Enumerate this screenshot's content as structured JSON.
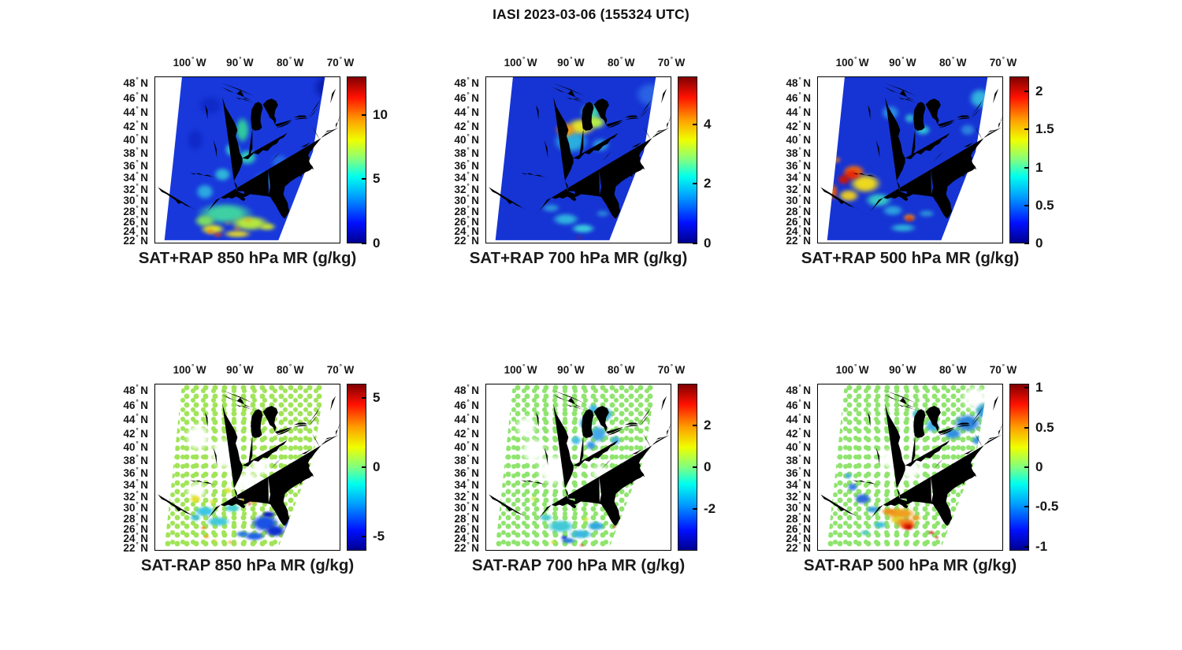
{
  "figure_title": "IASI 2023-03-06 (155324 UTC)",
  "deg_symbol": "°",
  "axes": {
    "lon_hemisphere": "W",
    "lat_hemisphere": "N",
    "lon_tick_values": [
      100,
      90,
      80,
      70
    ],
    "lat_tick_values": [
      48,
      46,
      44,
      42,
      40,
      38,
      36,
      34,
      32,
      30,
      28,
      26,
      24,
      22
    ],
    "lon_range_west_to_east": [
      107,
      70
    ],
    "lat_range_south_to_north": [
      22,
      49
    ],
    "grid": false
  },
  "colormap_jet": [
    "#000090",
    "#0010ff",
    "#00a0ff",
    "#00ffee",
    "#80ff80",
    "#efff00",
    "#ffa000",
    "#ff1000",
    "#800000"
  ],
  "chart_data": [
    {
      "type": "heatmap",
      "title": "SAT+RAP 850 hPa MR (g/kg)",
      "pressure_level_hpa": 850,
      "quantity": "mixing ratio (g/kg)",
      "mode": "SAT+RAP",
      "colorbar": {
        "range": [
          0,
          13
        ],
        "tick_values": [
          0,
          5,
          10
        ],
        "tick_labels": [
          "0",
          "5",
          "10"
        ]
      },
      "field": {
        "style": "smooth",
        "base_color": "#1838dc",
        "blobs": [
          [
            72.5,
            47.5,
            4,
            2.5,
            "#0a1fb0"
          ],
          [
            96,
            45,
            3.5,
            2,
            "#0f2ac8"
          ],
          [
            99,
            40,
            2.5,
            2.5,
            "#0f2ac8"
          ],
          [
            89.5,
            41.5,
            2.2,
            2.8,
            "#2ec89e"
          ],
          [
            91.5,
            38.5,
            2.2,
            1.6,
            "#35c8cc"
          ],
          [
            88.5,
            37.3,
            2.8,
            1.8,
            "#30c8b8"
          ],
          [
            85,
            33.5,
            3,
            2,
            "#2f86e0"
          ],
          [
            82,
            36.5,
            2.5,
            2,
            "#2565e6"
          ],
          [
            97,
            31.5,
            2.6,
            2,
            "#2ca8e0"
          ],
          [
            93.5,
            34.5,
            2.4,
            1.6,
            "#2fb6d8"
          ],
          [
            93,
            27.5,
            8,
            3,
            "#3ed0a2"
          ],
          [
            97,
            26,
            3,
            1.8,
            "#7ade64"
          ],
          [
            88,
            25.5,
            5.5,
            2.2,
            "#b4e83c"
          ],
          [
            95.5,
            24.3,
            3.5,
            1.6,
            "#dce22c"
          ],
          [
            84.5,
            24.8,
            2.4,
            1.2,
            "#c8e434"
          ],
          [
            90.5,
            23.3,
            4,
            1.2,
            "#e0d42c"
          ],
          [
            96,
            23.8,
            1.2,
            0.7,
            "#f07818"
          ],
          [
            94.4,
            23.1,
            1.4,
            0.6,
            "#e83a0e"
          ],
          [
            90.6,
            24.4,
            0.9,
            0.5,
            "#f09020"
          ],
          [
            88.4,
            26.1,
            0.8,
            0.5,
            "#f0a020"
          ],
          [
            92.4,
            25.6,
            0.7,
            0.4,
            "#ef8c1e"
          ]
        ]
      }
    },
    {
      "type": "heatmap",
      "title": "SAT+RAP 700 hPa MR (g/kg)",
      "pressure_level_hpa": 700,
      "quantity": "mixing ratio (g/kg)",
      "mode": "SAT+RAP",
      "colorbar": {
        "range": [
          0,
          5.6
        ],
        "tick_values": [
          0,
          2,
          4
        ],
        "tick_labels": [
          "0",
          "2",
          "4"
        ]
      },
      "field": {
        "style": "smooth",
        "base_color": "#1634d4",
        "blobs": [
          [
            74,
            46.5,
            4.5,
            2.5,
            "#2a62e4"
          ],
          [
            90,
            39.8,
            5,
            2.6,
            "#2aaede"
          ],
          [
            86,
            44,
            3,
            1.8,
            "#3ecfb2"
          ],
          [
            84,
            39.2,
            2.6,
            1.5,
            "#2d97dd"
          ],
          [
            88,
            42,
            4,
            1.8,
            "#e4e22a"
          ],
          [
            85.2,
            42.6,
            3.2,
            1.4,
            "#b5ee48"
          ],
          [
            91,
            41.5,
            2.8,
            1.5,
            "#f59d12"
          ],
          [
            91.8,
            41.7,
            1.4,
            0.9,
            "#ef3607"
          ],
          [
            94,
            28.5,
            2.6,
            1.2,
            "#2b8ede"
          ],
          [
            91,
            26.3,
            3.8,
            1.7,
            "#2fb2df"
          ],
          [
            87.5,
            24.4,
            3.4,
            1.4,
            "#3accdf"
          ],
          [
            83.6,
            27.4,
            2,
            1,
            "#2a7fd9"
          ],
          [
            80.9,
            35.4,
            1.1,
            0.8,
            "#37c3ae"
          ],
          [
            88.3,
            22.4,
            0.6,
            0.4,
            "#c41507"
          ],
          [
            81.4,
            26.7,
            0.5,
            0.35,
            "#a31108"
          ]
        ]
      }
    },
    {
      "type": "heatmap",
      "title": "SAT+RAP 500 hPa MR (g/kg)",
      "pressure_level_hpa": 500,
      "quantity": "mixing ratio (g/kg)",
      "mode": "SAT+RAP",
      "colorbar": {
        "range": [
          0,
          2.2
        ],
        "tick_values": [
          0,
          0.5,
          1,
          1.5,
          2
        ],
        "tick_labels": [
          "0",
          "0.5",
          "1",
          "1.5",
          "2"
        ]
      },
      "field": {
        "style": "smooth",
        "base_color": "#1634d4",
        "blobs": [
          [
            92.5,
            44,
            2.6,
            1.5,
            "#2b8ce6"
          ],
          [
            74.5,
            46,
            3.2,
            2,
            "#31b2df"
          ],
          [
            71.5,
            43.5,
            2.2,
            2,
            "#3ac7da"
          ],
          [
            77,
            41.5,
            2.2,
            1.3,
            "#2b80df"
          ],
          [
            86,
            41.5,
            2.2,
            1.1,
            "#30bfd6"
          ],
          [
            88.5,
            43.2,
            1.6,
            1,
            "#30aed0"
          ],
          [
            97.5,
            33,
            4.5,
            2.4,
            "#ecd81e"
          ],
          [
            100.8,
            30.8,
            3,
            1.6,
            "#e6c826"
          ],
          [
            94.8,
            30,
            3.8,
            1.9,
            "#36c6c6"
          ],
          [
            92,
            28,
            3,
            1.5,
            "#2b9fdf"
          ],
          [
            99.8,
            35,
            3.2,
            1.7,
            "#ef6a0d"
          ],
          [
            100.2,
            34.5,
            2.4,
            1.2,
            "#e62807"
          ],
          [
            101.8,
            33.6,
            1.9,
            1.3,
            "#cb1507"
          ],
          [
            104,
            31.5,
            1.4,
            2,
            "#e65a0e"
          ],
          [
            103.2,
            36.9,
            1,
            0.7,
            "#e87816"
          ],
          [
            90,
            24.5,
            3.8,
            1.2,
            "#2eafda"
          ],
          [
            85.2,
            27.4,
            2.4,
            1,
            "#2b8fda"
          ],
          [
            88.6,
            26.6,
            1.8,
            1,
            "#f28b16"
          ],
          [
            88.6,
            26.4,
            0.9,
            0.55,
            "#cd1507"
          ]
        ]
      }
    },
    {
      "type": "heatmap",
      "title": "SAT-RAP 850 hPa MR (g/kg)",
      "pressure_level_hpa": 850,
      "quantity": "mixing ratio difference (g/kg)",
      "mode": "SAT-RAP",
      "colorbar": {
        "range": [
          -6,
          6
        ],
        "tick_values": [
          -5,
          0,
          5
        ],
        "tick_labels": [
          "-5",
          "0",
          "5"
        ]
      },
      "field": {
        "style": "dots",
        "base_color": "#a0e458",
        "blobs": [
          [
            93,
            39,
            4,
            3,
            "#ffffff"
          ],
          [
            98.5,
            41.5,
            3,
            2.5,
            "#ffffff"
          ],
          [
            88.5,
            34.5,
            3,
            2.2,
            "#ffffff"
          ],
          [
            98.7,
            33,
            2.6,
            1.8,
            "#ffffff"
          ],
          [
            86,
            37,
            2.4,
            1.8,
            "#ffffff"
          ],
          [
            99,
            31.5,
            1.6,
            1,
            "#e6e02e"
          ],
          [
            92.5,
            33,
            1.2,
            0.8,
            "#d6e836"
          ],
          [
            95.5,
            31,
            1,
            0.6,
            "#e0e632"
          ],
          [
            97,
            29.3,
            3,
            1.4,
            "#3cc6e6"
          ],
          [
            94.3,
            27.3,
            3.4,
            1.4,
            "#42c8de"
          ],
          [
            91.5,
            29.8,
            2.4,
            1.1,
            "#4ad0d6"
          ],
          [
            99,
            28,
            1.6,
            1,
            "#46c4dc"
          ],
          [
            85,
            27,
            4,
            2.4,
            "#1a52e6"
          ],
          [
            83,
            25.4,
            3,
            1.8,
            "#0f30cf"
          ],
          [
            87,
            24.3,
            3,
            1.4,
            "#2263e6"
          ],
          [
            80.4,
            26.5,
            0.9,
            2.2,
            "#2145de"
          ],
          [
            84.3,
            28.6,
            2,
            0.9,
            "#0a20bd"
          ],
          [
            89.5,
            24.8,
            2,
            1,
            "#2e7ce0"
          ],
          [
            88.2,
            31.4,
            1.7,
            0.8,
            "#ef5110"
          ],
          [
            89.3,
            31.1,
            0.9,
            0.5,
            "#f79016"
          ],
          [
            87,
            31,
            0.7,
            0.5,
            "#f7a01e"
          ],
          [
            88,
            30.6,
            0.5,
            0.4,
            "#cc1507"
          ],
          [
            97.3,
            26,
            0.7,
            0.5,
            "#ef8016"
          ],
          [
            96.8,
            24.3,
            0.8,
            0.5,
            "#f7a01e"
          ],
          [
            92,
            23,
            0.7,
            0.4,
            "#efa026"
          ],
          [
            95,
            23.4,
            0.6,
            0.4,
            "#e6cf28"
          ]
        ]
      }
    },
    {
      "type": "heatmap",
      "title": "SAT-RAP 700 hPa MR (g/kg)",
      "pressure_level_hpa": 700,
      "quantity": "mixing ratio difference (g/kg)",
      "mode": "SAT-RAP",
      "colorbar": {
        "range": [
          -4,
          4
        ],
        "tick_values": [
          -2,
          0,
          2
        ],
        "tick_labels": [
          "-2",
          "0",
          "2"
        ]
      },
      "field": {
        "style": "dots",
        "base_color": "#8fe46e",
        "blobs": [
          [
            93.5,
            36.5,
            4,
            3,
            "#ffffff"
          ],
          [
            97.5,
            39.5,
            3,
            2.4,
            "#ffffff"
          ],
          [
            99,
            43,
            2.5,
            2,
            "#ffffff"
          ],
          [
            84,
            36,
            2.2,
            1.6,
            "#ffffff"
          ],
          [
            87,
            43.5,
            2,
            1.4,
            "#3aaee8"
          ],
          [
            84.5,
            42,
            2.4,
            1.8,
            "#42a8e8"
          ],
          [
            89,
            41,
            1.5,
            1,
            "#4ac0e8"
          ],
          [
            83,
            44.8,
            2,
            1.4,
            "#46b4e0"
          ],
          [
            86,
            40.3,
            1.5,
            1,
            "#3a98e0"
          ],
          [
            81,
            41,
            1.5,
            1,
            "#4ab4e4"
          ],
          [
            85.5,
            45.5,
            1.5,
            1,
            "#42b8e6"
          ],
          [
            92,
            26.3,
            4,
            1.9,
            "#42c8d8"
          ],
          [
            88,
            24.8,
            3.4,
            1.4,
            "#3ab8e0"
          ],
          [
            85,
            26.4,
            2.5,
            1.4,
            "#32a8e0"
          ],
          [
            95,
            28,
            2,
            1,
            "#4cccd4"
          ],
          [
            90.5,
            23.4,
            2,
            0.9,
            "#2a80d8"
          ],
          [
            91.3,
            24,
            1,
            0.6,
            "#1a42d8"
          ],
          [
            93.5,
            23,
            0.8,
            0.5,
            "#e6e02e"
          ],
          [
            87,
            27.7,
            1,
            0.5,
            "#cfe836"
          ],
          [
            97.5,
            31.5,
            0.8,
            0.5,
            "#d8ea34"
          ],
          [
            81.2,
            26.4,
            0.5,
            0.4,
            "#bf1507"
          ],
          [
            87.8,
            22.4,
            0.5,
            0.35,
            "#cc1d07"
          ],
          [
            80.8,
            28.4,
            0.4,
            0.3,
            "#a80f07"
          ]
        ]
      }
    },
    {
      "type": "heatmap",
      "title": "SAT-RAP 500 hPa MR (g/kg)",
      "pressure_level_hpa": 500,
      "quantity": "mixing ratio difference (g/kg)",
      "mode": "SAT-RAP",
      "colorbar": {
        "range": [
          -1.05,
          1.05
        ],
        "tick_values": [
          -1,
          -0.5,
          0,
          0.5,
          1
        ],
        "tick_labels": [
          "-1",
          "-0.5",
          "0",
          "0.5",
          "1"
        ]
      },
      "field": {
        "style": "dots",
        "base_color": "#8fe46e",
        "blobs": [
          [
            75.5,
            47,
            3.2,
            2,
            "#ffffff"
          ],
          [
            88.5,
            36.6,
            3,
            2.2,
            "#ffffff"
          ],
          [
            92.5,
            38.2,
            2.6,
            2,
            "#ffffff"
          ],
          [
            77,
            43.5,
            4,
            1.9,
            "#2f86de"
          ],
          [
            73.5,
            45.2,
            3,
            1.8,
            "#38a0e0"
          ],
          [
            80,
            42,
            2.6,
            1.2,
            "#3090e0"
          ],
          [
            84,
            43.2,
            2,
            1.4,
            "#42b0e8"
          ],
          [
            87,
            44.8,
            1.5,
            1,
            "#4ac0e8"
          ],
          [
            75,
            41,
            1.6,
            1,
            "#3a98e2"
          ],
          [
            98,
            31.6,
            2.4,
            1.4,
            "#2f6ade"
          ],
          [
            100,
            33.6,
            1.5,
            1,
            "#3a80e8"
          ],
          [
            96,
            29.6,
            2,
            1,
            "#3aa0e0"
          ],
          [
            101,
            35.5,
            1,
            0.8,
            "#4ab0e0"
          ],
          [
            90.5,
            28.8,
            4.5,
            1.6,
            "#f0a01e"
          ],
          [
            92.8,
            29.2,
            2.2,
            0.8,
            "#ef8c16"
          ],
          [
            91,
            27.6,
            2.2,
            1.1,
            "#e6cf28"
          ],
          [
            89.3,
            26.9,
            3,
            1.6,
            "#f0811a"
          ],
          [
            89,
            26.3,
            1.9,
            1.1,
            "#e62e07"
          ],
          [
            88.8,
            26.1,
            1,
            0.6,
            "#c00d06"
          ],
          [
            87.3,
            28,
            1.4,
            0.8,
            "#efa026"
          ],
          [
            84.3,
            25,
            0.8,
            0.5,
            "#cc1507"
          ],
          [
            83.2,
            24.1,
            0.5,
            0.4,
            "#c41007"
          ],
          [
            94.5,
            26.6,
            2,
            1,
            "#42c0d8"
          ],
          [
            97.5,
            25,
            1.5,
            0.8,
            "#56cfc0"
          ]
        ]
      }
    }
  ]
}
